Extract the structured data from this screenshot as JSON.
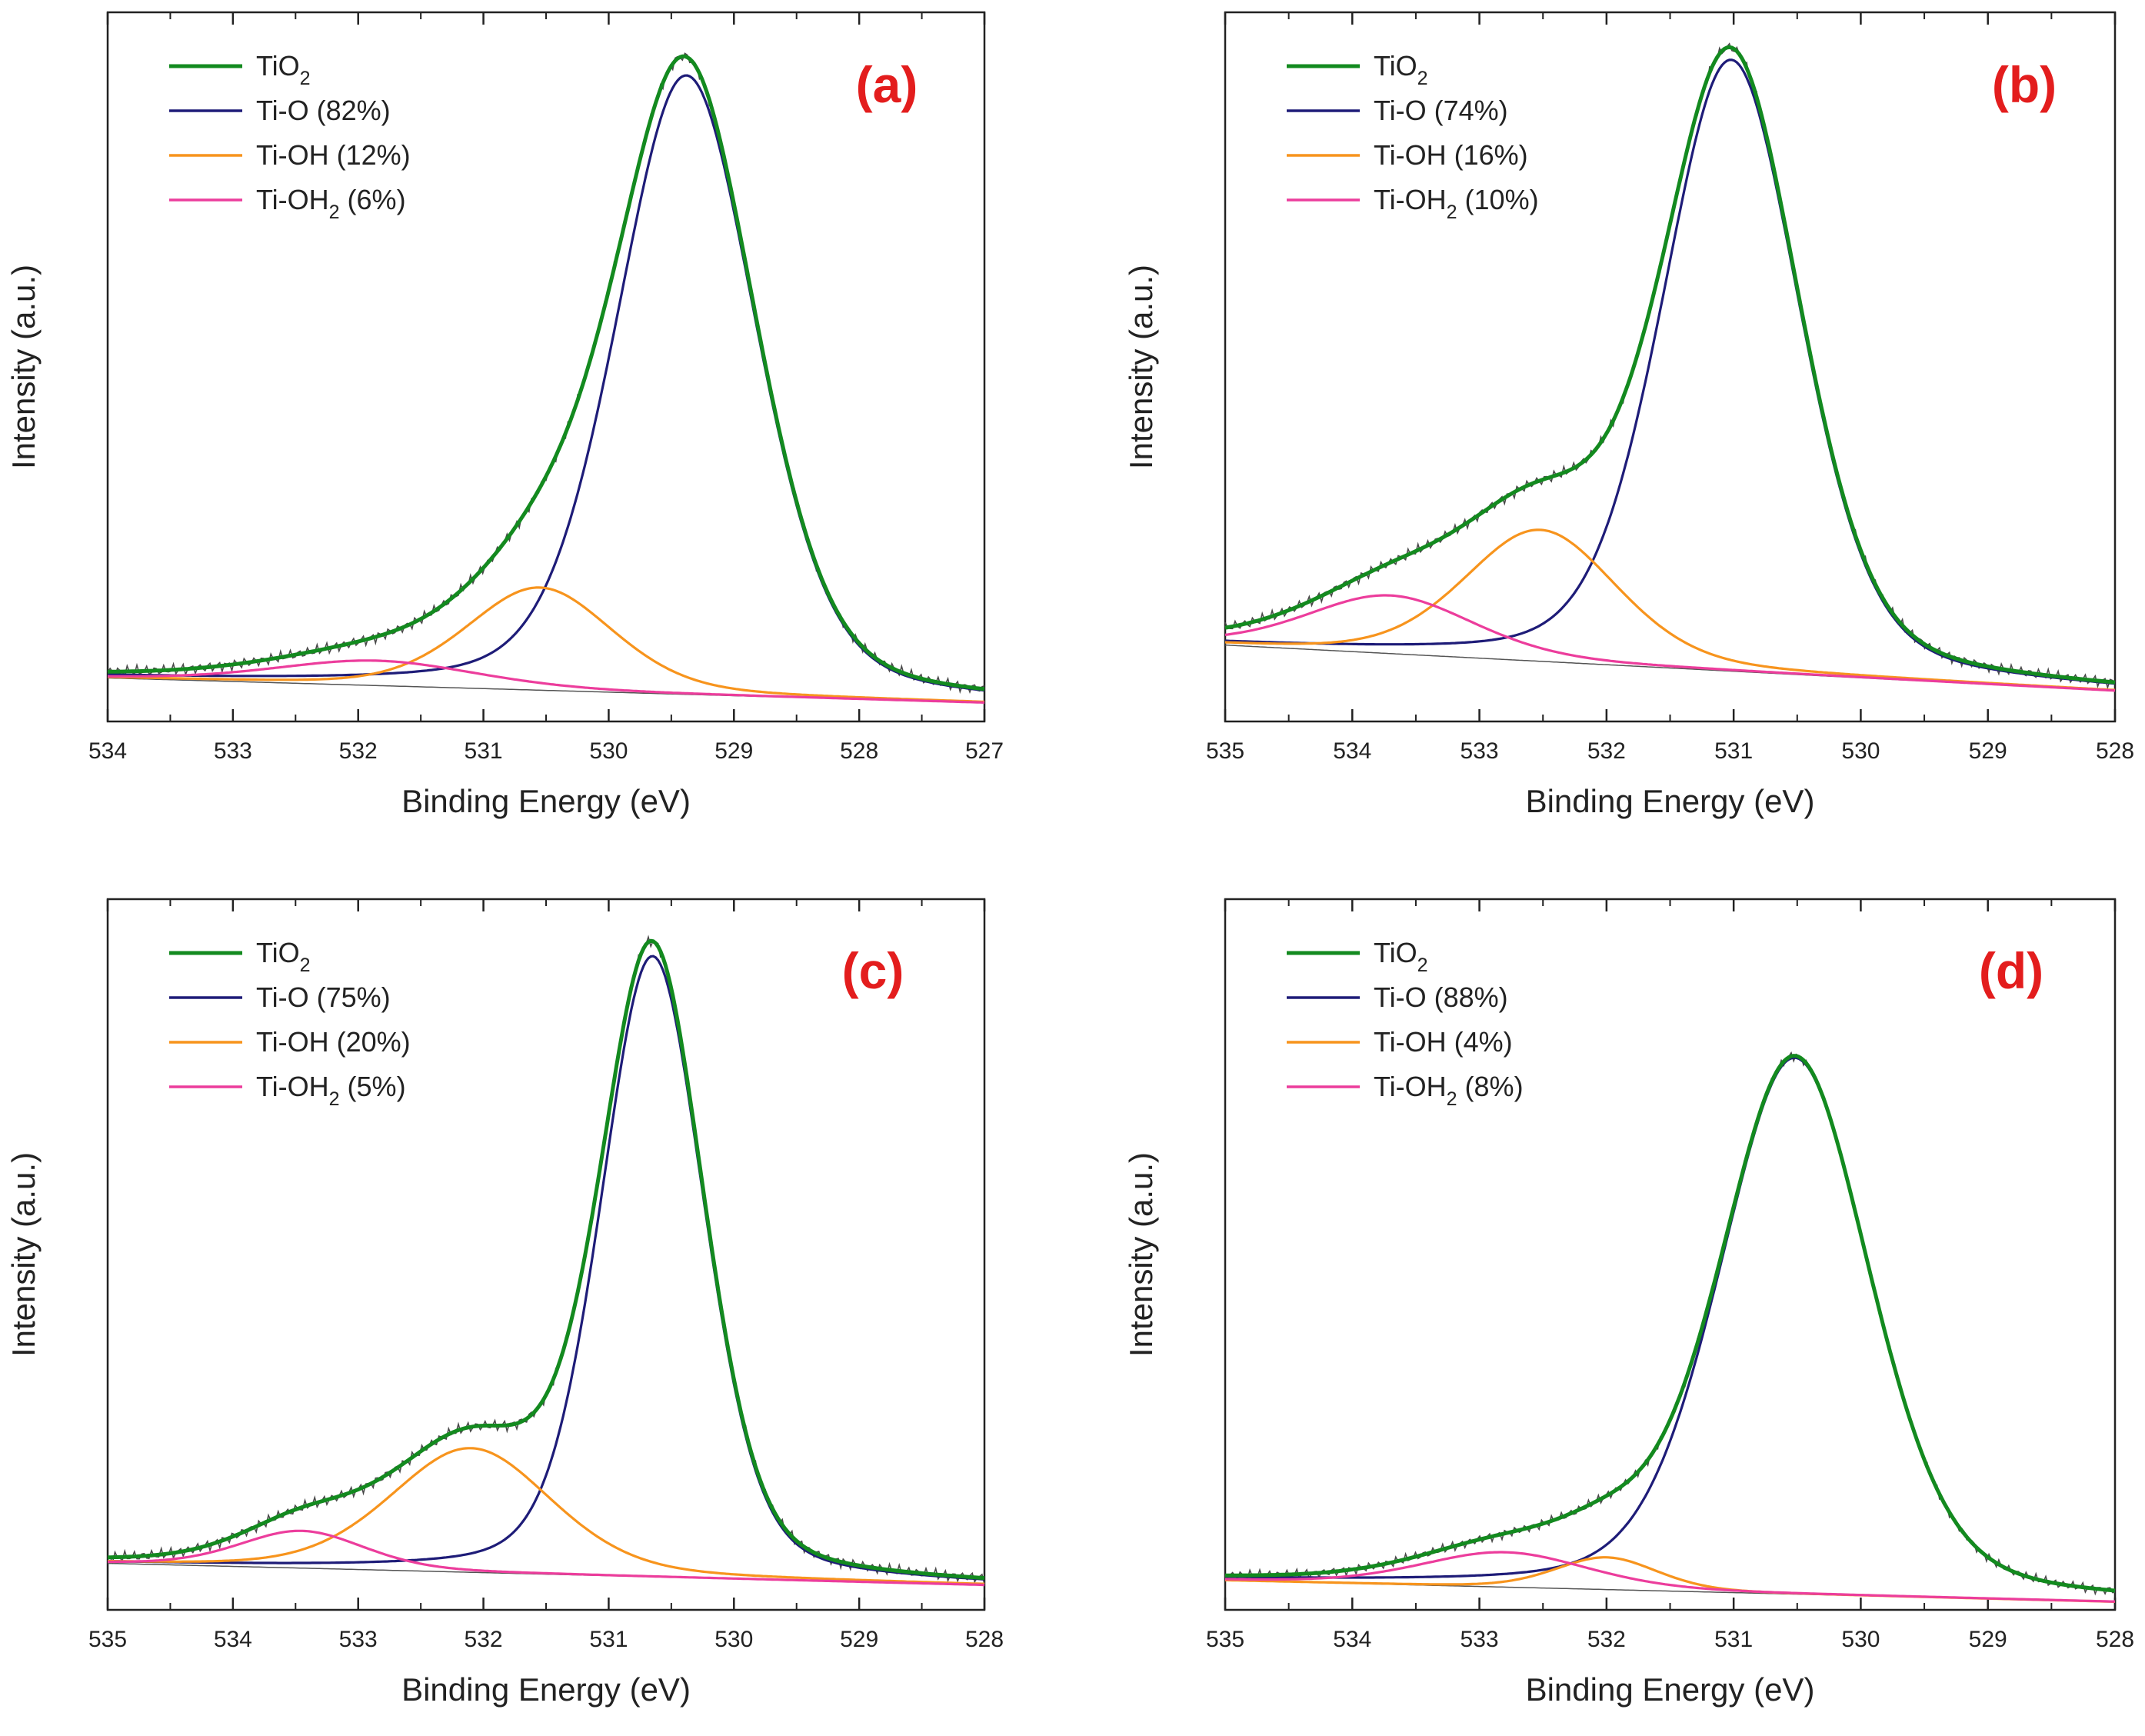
{
  "colors": {
    "tio2": "#138a1f",
    "ti_o": "#1e1c78",
    "ti_oh": "#f7941d",
    "ti_oh2": "#ec3d9c",
    "raw": "#4a4a4a",
    "baseline": "#555555",
    "panel_label": "#e31d1d",
    "axis": "#222222"
  },
  "chart_data": [
    {
      "type": "line",
      "panel_label": "(a)",
      "xlabel": "Binding Energy (eV)",
      "ylabel": "Intensity (a.u.)",
      "xlim": [
        534,
        527
      ],
      "ylim": [
        -0.07,
        1.07
      ],
      "xticks": [
        534,
        533,
        532,
        531,
        530,
        529,
        528,
        527
      ],
      "xtick_labels": [
        "534",
        "533",
        "532",
        "531",
        "530",
        "529",
        "528",
        "527"
      ],
      "legend": [
        {
          "key": "tio2",
          "base": "TiO",
          "sub": "2",
          "rest": ""
        },
        {
          "key": "ti_o",
          "base": "Ti-O (82%)",
          "sub": "",
          "rest": ""
        },
        {
          "key": "ti_oh",
          "base": "Ti-OH (12%)",
          "sub": "",
          "rest": ""
        },
        {
          "key": "ti_oh2",
          "base": "Ti-OH",
          "sub": "2",
          "rest": " (6%)"
        }
      ],
      "baseline": {
        "start": 0.0,
        "end": -0.04
      },
      "components": [
        {
          "key": "ti_o",
          "center": 529.38,
          "height": 0.995,
          "fwhm": 1.32
        },
        {
          "key": "ti_oh",
          "center": 530.55,
          "height": 0.165,
          "fwhm": 1.38
        },
        {
          "key": "ti_oh2",
          "center": 531.85,
          "height": 0.04,
          "fwhm": 1.9
        }
      ]
    },
    {
      "type": "line",
      "panel_label": "(b)",
      "xlabel": "Binding Energy (eV)",
      "ylabel": "Intensity (a.u.)",
      "xlim": [
        535,
        528
      ],
      "ylim": [
        -0.09,
        1.07
      ],
      "xticks": [
        535,
        534,
        533,
        532,
        531,
        530,
        529,
        528
      ],
      "xtick_labels": [
        "535",
        "534",
        "533",
        "532",
        "531",
        "530",
        "529",
        "528"
      ],
      "legend": [
        {
          "key": "tio2",
          "base": "TiO",
          "sub": "2",
          "rest": ""
        },
        {
          "key": "ti_o",
          "base": "Ti-O (74%)",
          "sub": "",
          "rest": ""
        },
        {
          "key": "ti_oh",
          "base": "Ti-OH (16%)",
          "sub": "",
          "rest": ""
        },
        {
          "key": "ti_oh2",
          "base": "Ti-OH",
          "sub": "2",
          "rest": " (10%)"
        }
      ],
      "baseline": {
        "start": 0.035,
        "end": -0.04
      },
      "components": [
        {
          "key": "ti_o",
          "center": 531.02,
          "height": 1.0,
          "fwhm": 1.28
        },
        {
          "key": "ti_oh",
          "center": 532.52,
          "height": 0.215,
          "fwhm": 1.42
        },
        {
          "key": "ti_oh2",
          "center": 533.7,
          "height": 0.095,
          "fwhm": 1.55
        }
      ]
    },
    {
      "type": "line",
      "panel_label": "(c)",
      "xlabel": "Binding Energy (eV)",
      "ylabel": "Intensity (a.u.)",
      "xlim": [
        535,
        528
      ],
      "ylim": [
        -0.075,
        1.07
      ],
      "xticks": [
        535,
        534,
        533,
        532,
        531,
        530,
        529,
        528
      ],
      "xtick_labels": [
        "535",
        "534",
        "533",
        "532",
        "531",
        "530",
        "529",
        "528"
      ],
      "legend": [
        {
          "key": "tio2",
          "base": "TiO",
          "sub": "2",
          "rest": ""
        },
        {
          "key": "ti_o",
          "base": "Ti-O (75%)",
          "sub": "",
          "rest": ""
        },
        {
          "key": "ti_oh",
          "base": "Ti-OH (20%)",
          "sub": "",
          "rest": ""
        },
        {
          "key": "ti_oh2",
          "base": "Ti-OH",
          "sub": "2",
          "rest": " (5%)"
        }
      ],
      "baseline": {
        "start": 0.0,
        "end": -0.035
      },
      "components": [
        {
          "key": "ti_o",
          "center": 530.65,
          "height": 1.0,
          "fwhm": 0.98
        },
        {
          "key": "ti_oh",
          "center": 532.1,
          "height": 0.2,
          "fwhm": 1.52
        },
        {
          "key": "ti_oh2",
          "center": 533.45,
          "height": 0.06,
          "fwhm": 1.18
        }
      ]
    },
    {
      "type": "line",
      "panel_label": "(d)",
      "xlabel": "Binding Energy (eV)",
      "ylabel": "Intensity (a.u.)",
      "xlim": [
        535,
        528
      ],
      "ylim": [
        -0.055,
        1.27
      ],
      "xticks": [
        535,
        534,
        533,
        532,
        531,
        530,
        529,
        528
      ],
      "xtick_labels": [
        "535",
        "534",
        "533",
        "532",
        "531",
        "530",
        "529",
        "528"
      ],
      "legend": [
        {
          "key": "tio2",
          "base": "TiO",
          "sub": "2",
          "rest": ""
        },
        {
          "key": "ti_o",
          "base": "Ti-O (88%)",
          "sub": "",
          "rest": ""
        },
        {
          "key": "ti_oh",
          "base": "Ti-OH (4%)",
          "sub": "",
          "rest": ""
        },
        {
          "key": "ti_oh2",
          "base": "Ti-OH",
          "sub": "2",
          "rest": " (8%)"
        }
      ],
      "baseline": {
        "start": 0.0,
        "end": -0.04
      },
      "components": [
        {
          "key": "ti_o",
          "center": 530.52,
          "height": 1.0,
          "fwhm": 1.4
        },
        {
          "key": "ti_oh",
          "center": 532.0,
          "height": 0.06,
          "fwhm": 0.95
        },
        {
          "key": "ti_oh2",
          "center": 532.8,
          "height": 0.065,
          "fwhm": 1.55
        }
      ]
    }
  ]
}
